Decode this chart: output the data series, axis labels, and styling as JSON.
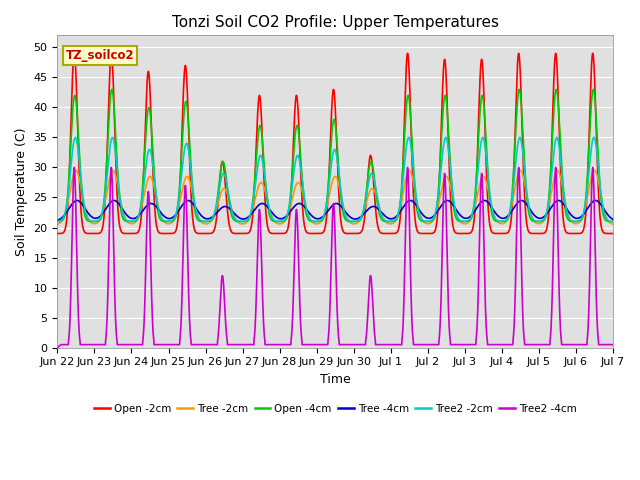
{
  "title": "Tonzi Soil CO2 Profile: Upper Temperatures",
  "xlabel": "Time",
  "ylabel": "Soil Temperature (C)",
  "ylim": [
    0,
    52
  ],
  "yticks": [
    0,
    5,
    10,
    15,
    20,
    25,
    30,
    35,
    40,
    45,
    50
  ],
  "x_labels": [
    "Jun 22",
    "Jun 23",
    "Jun 24",
    "Jun 25",
    "Jun 26",
    "Jun 27",
    "Jun 28",
    "Jun 29",
    "Jun 30",
    "Jul 1",
    "Jul 2",
    "Jul 3",
    "Jul 4",
    "Jul 5",
    "Jul 6",
    "Jul 7"
  ],
  "legend_label": "TZ_soilco2",
  "legend_label_color": "#cc0000",
  "legend_label_bg": "#ffffcc",
  "legend_label_border": "#aaaa00",
  "series": [
    {
      "name": "Open -2cm",
      "color": "#ff0000",
      "lw": 1.2
    },
    {
      "name": "Tree -2cm",
      "color": "#ff9900",
      "lw": 1.2
    },
    {
      "name": "Open -4cm",
      "color": "#00cc00",
      "lw": 1.2
    },
    {
      "name": "Tree -4cm",
      "color": "#0000cc",
      "lw": 1.2
    },
    {
      "name": "Tree2 -2cm",
      "color": "#00cccc",
      "lw": 1.2
    },
    {
      "name": "Tree2 -4cm",
      "color": "#cc00cc",
      "lw": 1.2
    }
  ],
  "bg_color": "#e0e0e0",
  "fig_bg": "#ffffff",
  "title_fontsize": 11,
  "axis_label_fontsize": 9,
  "tick_fontsize": 8
}
